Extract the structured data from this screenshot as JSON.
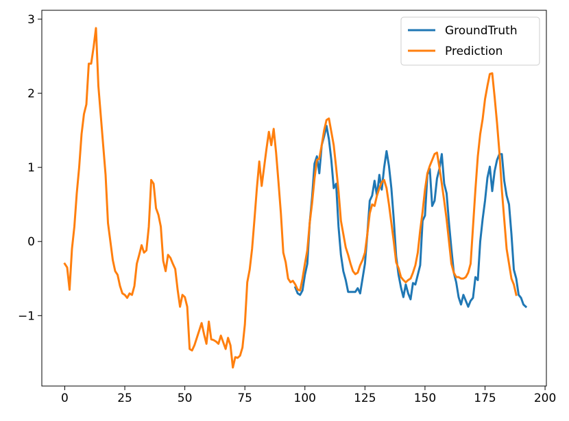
{
  "chart_data": {
    "type": "line",
    "title": "",
    "xlabel": "",
    "ylabel": "",
    "xlim": [
      -9.55,
      200.55
    ],
    "ylim": [
      -1.95,
      3.12
    ],
    "xticks": [
      0,
      25,
      50,
      75,
      100,
      125,
      150,
      175,
      200
    ],
    "xtick_labels": [
      "0",
      "25",
      "50",
      "75",
      "100",
      "125",
      "150",
      "175",
      "200"
    ],
    "yticks": [
      -1,
      0,
      1,
      2,
      3
    ],
    "ytick_labels": [
      "−1",
      "0",
      "1",
      "2",
      "3"
    ],
    "grid": false,
    "legend": {
      "placement": "upper right",
      "entries": [
        "GroundTruth",
        "Prediction"
      ]
    },
    "series": [
      {
        "name": "GroundTruth",
        "color": "#1f77b4",
        "x_start": 96,
        "values": [
          -0.62,
          -0.7,
          -0.72,
          -0.66,
          -0.45,
          -0.3,
          0.25,
          0.6,
          1.05,
          1.15,
          0.92,
          1.3,
          1.42,
          1.56,
          1.38,
          1.1,
          0.72,
          0.78,
          0.2,
          -0.18,
          -0.4,
          -0.52,
          -0.68,
          -0.68,
          -0.68,
          -0.68,
          -0.63,
          -0.7,
          -0.5,
          -0.3,
          0.1,
          0.55,
          0.62,
          0.82,
          0.62,
          0.9,
          0.7,
          1.0,
          1.22,
          1.02,
          0.72,
          0.3,
          -0.2,
          -0.45,
          -0.62,
          -0.75,
          -0.58,
          -0.7,
          -0.78,
          -0.56,
          -0.58,
          -0.45,
          -0.32,
          0.28,
          0.35,
          0.9,
          0.98,
          0.48,
          0.55,
          0.85,
          0.98,
          1.18,
          0.78,
          0.65,
          0.25,
          -0.1,
          -0.42,
          -0.55,
          -0.75,
          -0.85,
          -0.72,
          -0.8,
          -0.88,
          -0.8,
          -0.76,
          -0.48,
          -0.52,
          0.0,
          0.3,
          0.55,
          0.86,
          1.01,
          0.68,
          0.95,
          1.1,
          1.18,
          1.18,
          0.82,
          0.62,
          0.5,
          0.1,
          -0.38,
          -0.5,
          -0.72,
          -0.76,
          -0.85,
          -0.88
        ]
      },
      {
        "name": "Prediction",
        "color": "#ff7f0e",
        "x_start": 0,
        "values": [
          -0.3,
          -0.35,
          -0.65,
          -0.1,
          0.2,
          0.65,
          1.0,
          1.45,
          1.72,
          1.85,
          2.4,
          2.4,
          2.62,
          2.88,
          2.1,
          1.7,
          1.3,
          0.9,
          0.25,
          0.0,
          -0.25,
          -0.4,
          -0.45,
          -0.6,
          -0.7,
          -0.72,
          -0.76,
          -0.7,
          -0.72,
          -0.6,
          -0.3,
          -0.18,
          -0.05,
          -0.15,
          -0.12,
          0.2,
          0.83,
          0.78,
          0.45,
          0.36,
          0.2,
          -0.26,
          -0.4,
          -0.18,
          -0.22,
          -0.3,
          -0.37,
          -0.65,
          -0.88,
          -0.72,
          -0.75,
          -0.88,
          -1.45,
          -1.47,
          -1.4,
          -1.3,
          -1.2,
          -1.1,
          -1.25,
          -1.38,
          -1.08,
          -1.32,
          -1.33,
          -1.35,
          -1.38,
          -1.27,
          -1.36,
          -1.45,
          -1.3,
          -1.4,
          -1.7,
          -1.56,
          -1.57,
          -1.54,
          -1.43,
          -1.12,
          -0.55,
          -0.38,
          -0.1,
          0.3,
          0.72,
          1.08,
          0.75,
          1.0,
          1.25,
          1.48,
          1.3,
          1.52,
          1.2,
          0.8,
          0.38,
          -0.15,
          -0.28,
          -0.5,
          -0.55,
          -0.53,
          -0.58,
          -0.65,
          -0.66,
          -0.5,
          -0.3,
          -0.12,
          0.25,
          0.52,
          0.85,
          1.1,
          1.12,
          1.3,
          1.5,
          1.64,
          1.66,
          1.48,
          1.3,
          1.0,
          0.68,
          0.28,
          0.1,
          -0.08,
          -0.18,
          -0.3,
          -0.4,
          -0.44,
          -0.42,
          -0.32,
          -0.25,
          -0.15,
          0.1,
          0.38,
          0.5,
          0.48,
          0.62,
          0.72,
          0.8,
          0.83,
          0.72,
          0.5,
          0.25,
          0.0,
          -0.28,
          -0.36,
          -0.48,
          -0.52,
          -0.55,
          -0.52,
          -0.5,
          -0.42,
          -0.32,
          -0.15,
          0.15,
          0.4,
          0.7,
          0.92,
          1.02,
          1.1,
          1.18,
          1.2,
          1.0,
          0.78,
          0.55,
          0.3,
          0.0,
          -0.3,
          -0.42,
          -0.48,
          -0.48,
          -0.5,
          -0.5,
          -0.48,
          -0.42,
          -0.3,
          0.2,
          0.7,
          1.15,
          1.45,
          1.65,
          1.92,
          2.1,
          2.26,
          2.27,
          1.95,
          1.6,
          1.2,
          0.7,
          0.3,
          -0.1,
          -0.3,
          -0.5,
          -0.58,
          -0.72
        ]
      }
    ]
  }
}
